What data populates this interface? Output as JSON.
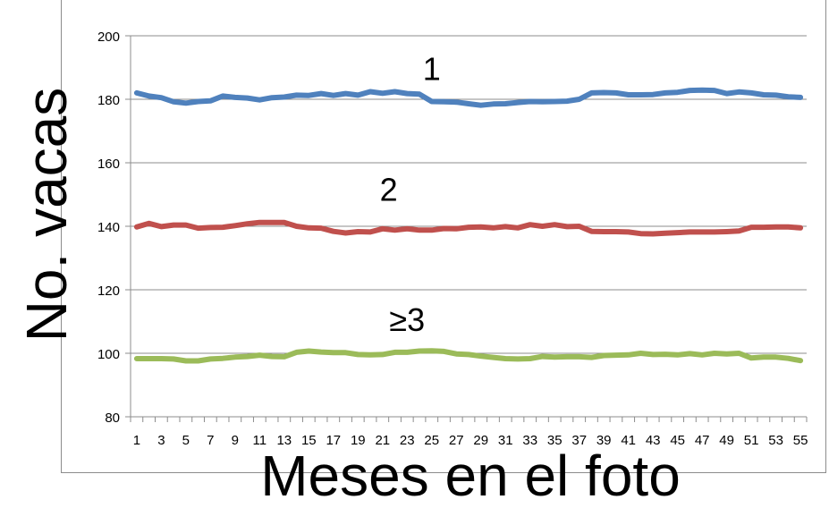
{
  "chart_data": {
    "type": "line",
    "title": "",
    "ylabel": "No. vacas",
    "xlabel": "Meses en el foto",
    "ylim": [
      80,
      200
    ],
    "yticks": [
      80,
      100,
      120,
      140,
      160,
      180,
      200
    ],
    "x": [
      1,
      2,
      3,
      4,
      5,
      6,
      7,
      8,
      9,
      10,
      11,
      12,
      13,
      14,
      15,
      16,
      17,
      18,
      19,
      20,
      21,
      22,
      23,
      24,
      25,
      26,
      27,
      28,
      29,
      30,
      31,
      32,
      33,
      34,
      35,
      36,
      37,
      38,
      39,
      40,
      41,
      42,
      43,
      44,
      45,
      46,
      47,
      48,
      49,
      50,
      51,
      52,
      53,
      54,
      55
    ],
    "xtick_labels": [
      "1",
      "3",
      "5",
      "7",
      "9",
      "11",
      "13",
      "15",
      "17",
      "19",
      "21",
      "23",
      "25",
      "27",
      "29",
      "31",
      "33",
      "35",
      "37",
      "39",
      "41",
      "43",
      "45",
      "47",
      "49",
      "51",
      "53",
      "55"
    ],
    "grid": true,
    "legend": "none",
    "series": [
      {
        "name": "1",
        "color": "#4f81bd",
        "values": [
          182,
          181,
          180.5,
          179.2,
          178.8,
          179.3,
          179.5,
          181,
          180.6,
          180.4,
          179.8,
          180.5,
          180.7,
          181.3,
          181.2,
          181.8,
          181.2,
          181.8,
          181.3,
          182.4,
          181.9,
          182.4,
          181.8,
          181.6,
          179.3,
          179.2,
          179.1,
          178.6,
          178.1,
          178.5,
          178.6,
          179,
          179.3,
          179.2,
          179.3,
          179.4,
          180,
          182,
          182.1,
          182,
          181.4,
          181.4,
          181.5,
          182,
          182.2,
          182.8,
          182.9,
          182.8,
          181.8,
          182.3,
          182,
          181.4,
          181.3,
          180.8,
          180.6
        ]
      },
      {
        "name": "2",
        "color": "#c0504d",
        "values": [
          139.8,
          140.9,
          139.9,
          140.4,
          140.4,
          139.4,
          139.6,
          139.7,
          140.2,
          140.8,
          141.2,
          141.2,
          141.2,
          140,
          139.5,
          139.4,
          138.4,
          137.9,
          138.3,
          138.2,
          139.2,
          138.8,
          139.2,
          138.8,
          138.8,
          139.3,
          139.2,
          139.7,
          139.8,
          139.5,
          139.9,
          139.5,
          140.5,
          140,
          140.5,
          139.9,
          140,
          138.4,
          138.3,
          138.3,
          138.2,
          137.7,
          137.6,
          137.8,
          138,
          138.2,
          138.2,
          138.2,
          138.3,
          138.5,
          139.7,
          139.7,
          139.8,
          139.8,
          139.5
        ]
      },
      {
        "name": "≥3",
        "color": "#9bbb59",
        "values": [
          98.3,
          98.3,
          98.3,
          98.2,
          97.6,
          97.6,
          98.2,
          98.4,
          98.8,
          99,
          99.4,
          99,
          98.9,
          100.3,
          100.7,
          100.4,
          100.2,
          100.2,
          99.6,
          99.5,
          99.6,
          100.3,
          100.3,
          100.7,
          100.8,
          100.6,
          99.8,
          99.6,
          99.1,
          98.7,
          98.3,
          98.2,
          98.3,
          99,
          98.8,
          98.9,
          98.9,
          98.7,
          99.3,
          99.4,
          99.5,
          100,
          99.6,
          99.7,
          99.5,
          99.9,
          99.5,
          100,
          99.8,
          100,
          98.5,
          98.8,
          98.8,
          98.4,
          97.7
        ]
      }
    ],
    "annotations": [
      {
        "text": "1",
        "x": 25,
        "y": 186
      },
      {
        "text": "2",
        "x": 21.5,
        "y": 148
      },
      {
        "text": "≥3",
        "x": 23,
        "y": 107
      }
    ]
  }
}
